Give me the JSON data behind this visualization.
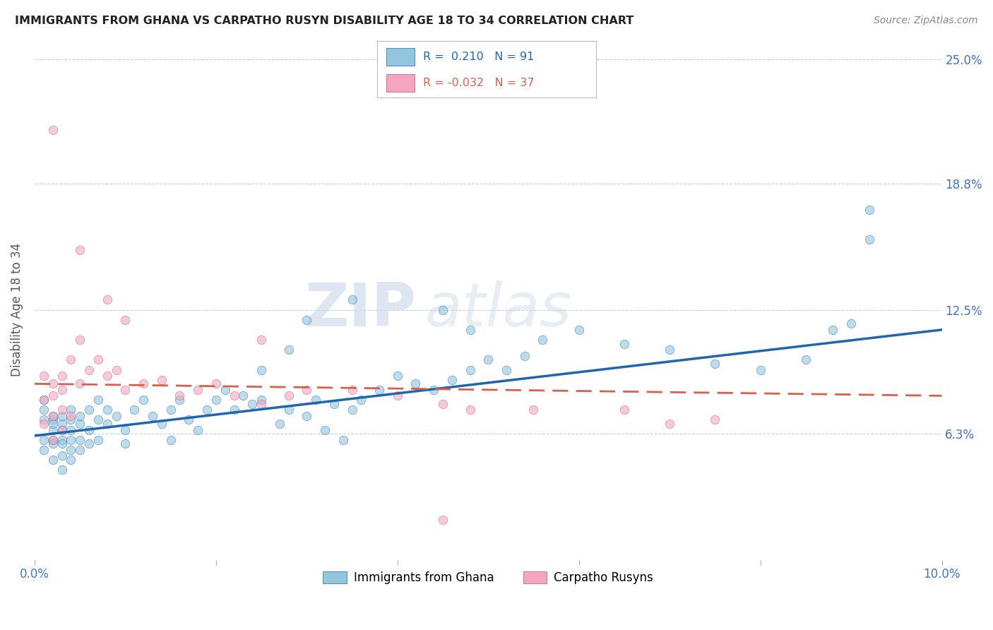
{
  "title": "IMMIGRANTS FROM GHANA VS CARPATHO RUSYN DISABILITY AGE 18 TO 34 CORRELATION CHART",
  "source": "Source: ZipAtlas.com",
  "ylabel": "Disability Age 18 to 34",
  "xlim": [
    0.0,
    0.1
  ],
  "ylim": [
    0.0,
    0.25
  ],
  "yticks": [
    0.0,
    0.063,
    0.125,
    0.188,
    0.25
  ],
  "ytick_labels": [
    "",
    "6.3%",
    "12.5%",
    "18.8%",
    "25.0%"
  ],
  "xticks": [
    0.0,
    0.02,
    0.04,
    0.06,
    0.08,
    0.1
  ],
  "xtick_labels": [
    "0.0%",
    "",
    "",
    "",
    "",
    "10.0%"
  ],
  "ghana_R": 0.21,
  "ghana_N": 91,
  "rusyn_R": -0.032,
  "rusyn_N": 37,
  "ghana_color": "#92c5de",
  "rusyn_color": "#f4a6c0",
  "ghana_line_color": "#2166ac",
  "rusyn_line_color": "#d6604d",
  "watermark_zip": "ZIP",
  "watermark_atlas": "atlas",
  "ghana_line_x": [
    0.0,
    0.1
  ],
  "ghana_line_y": [
    0.062,
    0.115
  ],
  "rusyn_line_x": [
    0.0,
    0.1
  ],
  "rusyn_line_y": [
    0.088,
    0.082
  ],
  "ghana_scatter_x": [
    0.001,
    0.001,
    0.001,
    0.001,
    0.001,
    0.002,
    0.002,
    0.002,
    0.002,
    0.002,
    0.002,
    0.002,
    0.003,
    0.003,
    0.003,
    0.003,
    0.003,
    0.003,
    0.003,
    0.004,
    0.004,
    0.004,
    0.004,
    0.004,
    0.004,
    0.005,
    0.005,
    0.005,
    0.005,
    0.006,
    0.006,
    0.006,
    0.007,
    0.007,
    0.007,
    0.008,
    0.008,
    0.009,
    0.01,
    0.01,
    0.011,
    0.012,
    0.013,
    0.014,
    0.015,
    0.015,
    0.016,
    0.017,
    0.018,
    0.019,
    0.02,
    0.021,
    0.022,
    0.023,
    0.024,
    0.025,
    0.027,
    0.028,
    0.03,
    0.031,
    0.032,
    0.033,
    0.034,
    0.035,
    0.036,
    0.038,
    0.04,
    0.042,
    0.044,
    0.046,
    0.048,
    0.05,
    0.052,
    0.054,
    0.056,
    0.06,
    0.065,
    0.07,
    0.075,
    0.08,
    0.085,
    0.088,
    0.09,
    0.092,
    0.092,
    0.045,
    0.048,
    0.035,
    0.03,
    0.028,
    0.025
  ],
  "ghana_scatter_y": [
    0.06,
    0.07,
    0.075,
    0.08,
    0.055,
    0.065,
    0.07,
    0.072,
    0.06,
    0.058,
    0.068,
    0.05,
    0.06,
    0.068,
    0.072,
    0.058,
    0.052,
    0.045,
    0.065,
    0.06,
    0.07,
    0.075,
    0.055,
    0.05,
    0.065,
    0.068,
    0.06,
    0.072,
    0.055,
    0.065,
    0.075,
    0.058,
    0.07,
    0.06,
    0.08,
    0.068,
    0.075,
    0.072,
    0.065,
    0.058,
    0.075,
    0.08,
    0.072,
    0.068,
    0.075,
    0.06,
    0.08,
    0.07,
    0.065,
    0.075,
    0.08,
    0.085,
    0.075,
    0.082,
    0.078,
    0.08,
    0.068,
    0.075,
    0.072,
    0.08,
    0.065,
    0.078,
    0.06,
    0.075,
    0.08,
    0.085,
    0.092,
    0.088,
    0.085,
    0.09,
    0.095,
    0.1,
    0.095,
    0.102,
    0.11,
    0.115,
    0.108,
    0.105,
    0.098,
    0.095,
    0.1,
    0.115,
    0.118,
    0.16,
    0.175,
    0.125,
    0.115,
    0.13,
    0.12,
    0.105,
    0.095
  ],
  "rusyn_scatter_x": [
    0.001,
    0.001,
    0.001,
    0.002,
    0.002,
    0.002,
    0.002,
    0.003,
    0.003,
    0.003,
    0.003,
    0.004,
    0.004,
    0.005,
    0.005,
    0.006,
    0.007,
    0.008,
    0.009,
    0.01,
    0.012,
    0.014,
    0.016,
    0.018,
    0.02,
    0.022,
    0.025,
    0.028,
    0.03,
    0.035,
    0.04,
    0.045,
    0.055,
    0.065,
    0.07,
    0.075,
    0.048
  ],
  "rusyn_scatter_y": [
    0.068,
    0.08,
    0.092,
    0.06,
    0.072,
    0.082,
    0.088,
    0.065,
    0.075,
    0.085,
    0.092,
    0.072,
    0.1,
    0.088,
    0.11,
    0.095,
    0.1,
    0.092,
    0.095,
    0.085,
    0.088,
    0.09,
    0.082,
    0.085,
    0.088,
    0.082,
    0.078,
    0.082,
    0.085,
    0.085,
    0.082,
    0.078,
    0.075,
    0.075,
    0.068,
    0.07,
    0.075
  ],
  "rusyn_outlier_x": [
    0.002,
    0.005,
    0.008,
    0.01,
    0.025,
    0.045
  ],
  "rusyn_outlier_y": [
    0.215,
    0.155,
    0.13,
    0.12,
    0.11,
    0.02
  ]
}
